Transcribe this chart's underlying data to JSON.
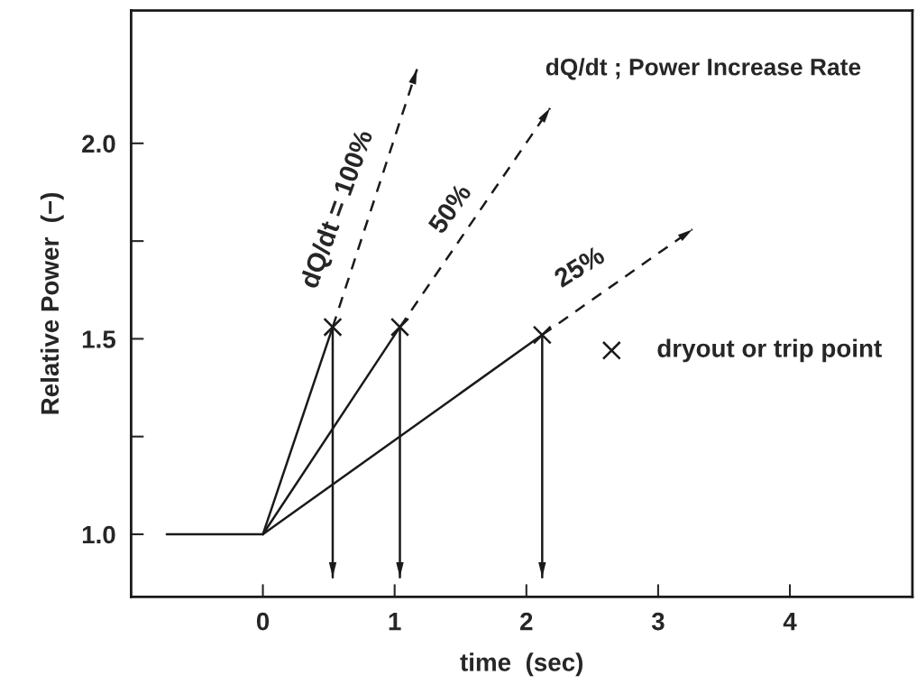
{
  "chart_data": {
    "type": "line",
    "xlabel": "time  (sec)",
    "ylabel": "Relative Power  (−)",
    "xlim": [
      -1.0,
      4.93
    ],
    "xticks": [
      0,
      1,
      2,
      3,
      4
    ],
    "ylim": [
      0.84,
      2.34
    ],
    "yticks": [
      {
        "value": 1.0,
        "label": "1.0"
      },
      {
        "value": 1.25,
        "label": null
      },
      {
        "value": 1.5,
        "label": "1.5"
      },
      {
        "value": 1.75,
        "label": null
      },
      {
        "value": 2.0,
        "label": "2.0"
      }
    ],
    "grid": false,
    "legend": "right",
    "series": [
      {
        "color": "#1a1a1a",
        "line_style": "solid",
        "x": [
          -0.73,
          0,
          0.53
        ],
        "values": [
          1.0,
          1.0,
          1.53
        ]
      },
      {
        "color": "#1a1a1a",
        "line_style": "solid",
        "x": [
          0,
          1.04
        ],
        "values": [
          1.0,
          1.53
        ]
      },
      {
        "color": "#1a1a1a",
        "line_style": "solid",
        "x": [
          0,
          2.12
        ],
        "values": [
          1.0,
          1.51
        ]
      },
      {
        "color": "#1a1a1a",
        "line_style": "dashed",
        "x": [
          0.53,
          1.17
        ],
        "values": [
          1.53,
          2.19
        ]
      },
      {
        "color": "#1a1a1a",
        "line_style": "dashed",
        "x": [
          1.04,
          2.18
        ],
        "values": [
          1.53,
          2.09
        ]
      },
      {
        "color": "#1a1a1a",
        "line_style": "dashed",
        "x": [
          2.12,
          3.26
        ],
        "values": [
          1.51,
          1.78
        ]
      },
      {
        "color": "#1a1a1a",
        "line_style": "solid",
        "x": [
          0.53,
          0.53
        ],
        "values": [
          1.53,
          0.89
        ]
      },
      {
        "color": "#1a1a1a",
        "line_style": "solid",
        "x": [
          1.04,
          1.04
        ],
        "values": [
          1.53,
          0.89
        ]
      },
      {
        "color": "#1a1a1a",
        "line_style": "solid",
        "x": [
          2.12,
          2.12
        ],
        "values": [
          1.51,
          0.89
        ]
      },
      {
        "type": "scatter",
        "name": "dryout or trip point",
        "color": "#1a1a1a",
        "marker": "cross",
        "x": [
          0.53,
          1.04,
          2.12
        ],
        "values": [
          1.53,
          1.53,
          1.51
        ]
      }
    ],
    "annotations": [
      "dQ/dt = 100%",
      "50%",
      "25%",
      "dQ/dt ; Power Increase Rate"
    ]
  }
}
